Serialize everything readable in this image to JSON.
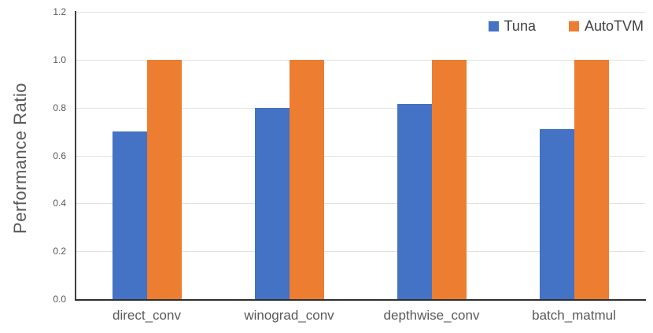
{
  "chart_data": {
    "type": "bar",
    "title": "",
    "categories": [
      "direct_conv",
      "winograd_conv",
      "depthwise_conv",
      "batch_matmul"
    ],
    "series": [
      {
        "name": "Tuna",
        "color": "#4472C4",
        "values": [
          0.7,
          0.8,
          0.815,
          0.71
        ]
      },
      {
        "name": "AutoTVM",
        "color": "#ED7D31",
        "values": [
          1.0,
          1.0,
          1.0,
          1.0
        ]
      }
    ],
    "xlabel": "",
    "ylabel": "Performance Ratio",
    "ylim": [
      0,
      1.2
    ],
    "ytick_labels": [
      "0.0",
      "0.2",
      "0.4",
      "0.6",
      "0.8",
      "1.0",
      "1.2"
    ],
    "grid": true,
    "legend_position": "top-right"
  },
  "colors": {
    "bar_blue": "#4472C4",
    "bar_orange": "#ED7D31",
    "gridline": "#E2E2E2",
    "axis_line": "#404040",
    "tick_text": "#595959",
    "category_text": "#595959",
    "legend_text": "#404040",
    "background": "#FFFFFF"
  }
}
